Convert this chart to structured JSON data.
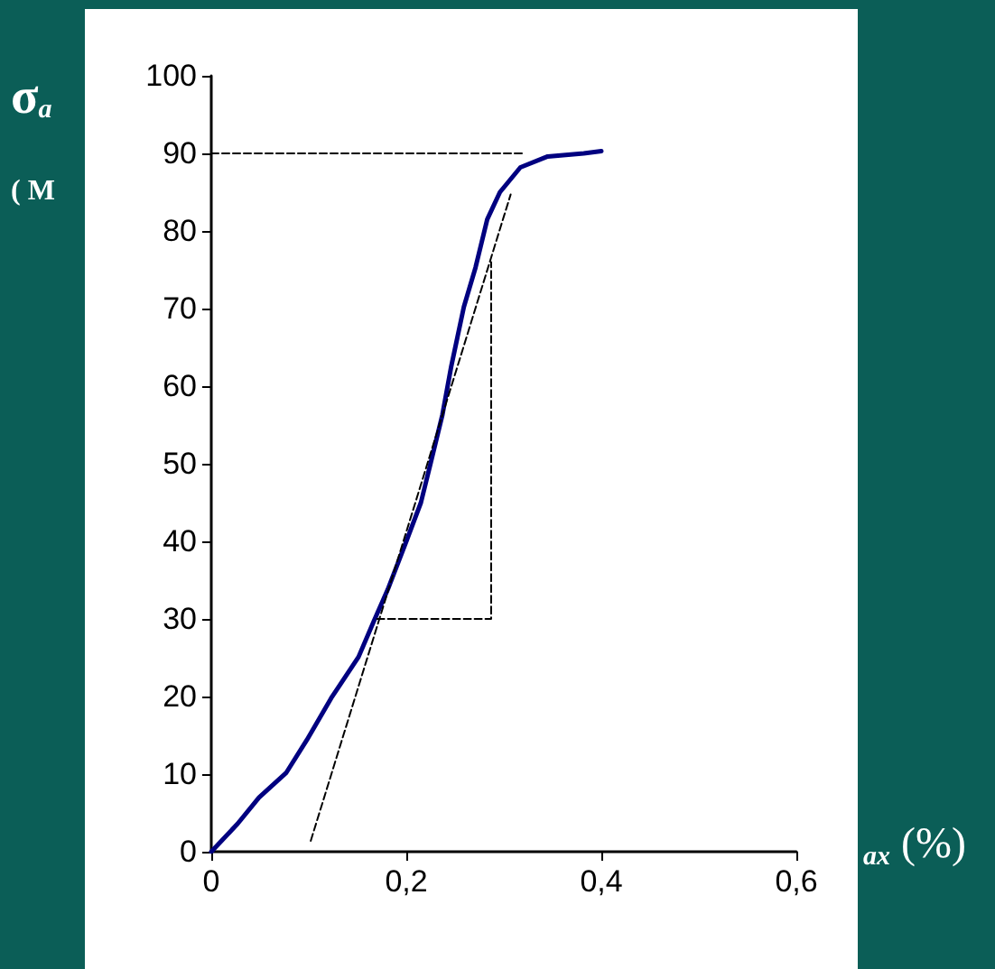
{
  "chart_data": {
    "type": "line",
    "ylabel": "σ$_{a}$\n( M",
    "xlabel": "$_{ax}$ (%)",
    "xlim": [
      0,
      0.6
    ],
    "xticks": [
      0,
      {
        "value": 0.2,
        "label": "0,2"
      },
      {
        "value": 0.4,
        "label": "0,4"
      },
      {
        "value": 0.6,
        "label": "0,6"
      }
    ],
    "ylim": [
      0,
      100
    ],
    "yticks": [
      0,
      10,
      20,
      30,
      40,
      50,
      60,
      70,
      80,
      90,
      100
    ],
    "grid": false,
    "marker": "none",
    "series": [
      {
        "color": "#000080",
        "line_style": "solid",
        "x": [
          0,
          0.027,
          0.049,
          0.077,
          0.098,
          0.123,
          0.151,
          0.166,
          0.181,
          0.2,
          0.215,
          0.225,
          0.237,
          0.246,
          0.259,
          0.271,
          0.283,
          0.296,
          0.317,
          0.345,
          0.382,
          0.4
        ],
        "values": [
          0,
          3.6,
          7,
          10.2,
          14.4,
          19.8,
          25.1,
          29.5,
          33.8,
          40,
          45,
          50.1,
          56.3,
          62.5,
          70.2,
          75.3,
          81.5,
          85,
          88.2,
          89.6,
          90,
          90.3
        ]
      },
      {
        "color": "#000000",
        "line_style": "dashed",
        "x": [
          0.102,
          0.307
        ],
        "values": [
          1.4,
          84.7
        ]
      },
      {
        "color": "#000000",
        "line_style": "dashed",
        "x": [
          0,
          0.32
        ],
        "values": [
          90,
          90
        ]
      },
      {
        "color": "#000000",
        "line_style": "dashed",
        "x": [
          0.17,
          0.287,
          0.287
        ],
        "values": [
          30,
          30,
          76
        ]
      }
    ]
  }
}
